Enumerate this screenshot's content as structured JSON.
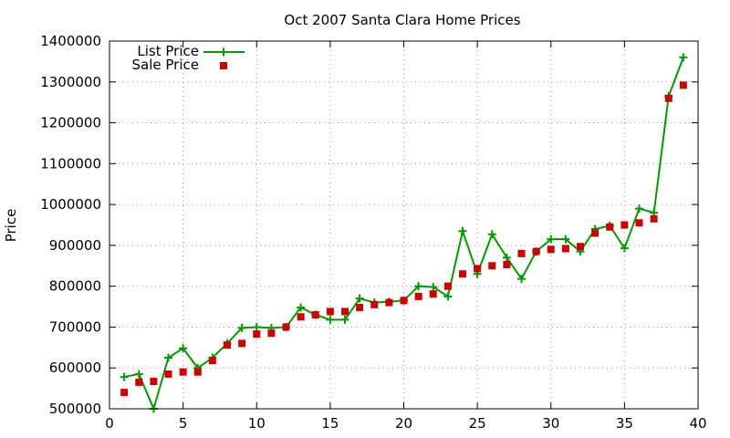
{
  "chart_data": {
    "type": "line",
    "title": "Oct 2007 Santa Clara Home Prices",
    "xlabel": "",
    "ylabel": "Price",
    "xlim": [
      0,
      40
    ],
    "ylim": [
      500000,
      1400000
    ],
    "xticks": [
      0,
      5,
      10,
      15,
      20,
      25,
      30,
      35,
      40
    ],
    "yticks": [
      500000,
      600000,
      700000,
      800000,
      900000,
      1000000,
      1100000,
      1200000,
      1300000,
      1400000
    ],
    "grid": true,
    "legend_position": "top-left",
    "series": [
      {
        "name": "List Price",
        "style": "line+cross",
        "color": "#009900",
        "x": [
          1,
          2,
          3,
          4,
          5,
          6,
          7,
          8,
          9,
          10,
          11,
          12,
          13,
          14,
          15,
          16,
          17,
          18,
          19,
          20,
          21,
          22,
          23,
          24,
          25,
          26,
          27,
          28,
          29,
          30,
          31,
          32,
          33,
          34,
          35,
          36,
          37,
          38,
          39
        ],
        "y": [
          578000,
          585000,
          500000,
          625000,
          648000,
          600000,
          625000,
          660000,
          698000,
          700000,
          698000,
          700000,
          748000,
          730000,
          718000,
          718000,
          770000,
          760000,
          762000,
          765000,
          800000,
          798000,
          775000,
          935000,
          830000,
          927000,
          870000,
          818000,
          885000,
          915000,
          915000,
          885000,
          940000,
          948000,
          893000,
          990000,
          980000,
          1265000,
          1360000
        ]
      },
      {
        "name": "Sale Price",
        "style": "square",
        "color": "#cc0000",
        "x": [
          1,
          2,
          3,
          4,
          5,
          6,
          7,
          8,
          9,
          10,
          11,
          12,
          13,
          14,
          15,
          16,
          17,
          18,
          19,
          20,
          21,
          22,
          23,
          24,
          25,
          26,
          27,
          28,
          29,
          30,
          31,
          32,
          33,
          34,
          35,
          36,
          37,
          38,
          39
        ],
        "y": [
          540000,
          565000,
          567000,
          585000,
          590000,
          590000,
          618000,
          656000,
          660000,
          683000,
          685000,
          700000,
          725000,
          730000,
          738000,
          738000,
          748000,
          755000,
          760000,
          765000,
          775000,
          781000,
          800000,
          830000,
          843000,
          850000,
          853000,
          880000,
          885000,
          890000,
          892000,
          897000,
          930000,
          945000,
          950000,
          955000,
          965000,
          1260000,
          1292000
        ]
      }
    ]
  }
}
